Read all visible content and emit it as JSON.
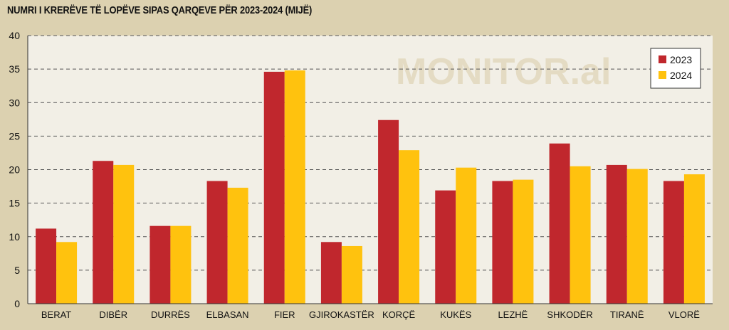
{
  "title": "NUMRI I KRERËVE TË LOPËVE SIPAS QARQEVE PËR 2023-2024 (MIJË)",
  "watermark": "MONITOR.al",
  "colors": {
    "page_background": "#dcd1b0",
    "plot_background": "#f2efe6",
    "series_2023": "#c0272d",
    "series_2024": "#ffc20e"
  },
  "chart_data": {
    "type": "bar",
    "title": "NUMRI I KRERËVE TË LOPËVE SIPAS QARQEVE PËR 2023-2024 (MIJË)",
    "xlabel": "",
    "ylabel": "",
    "ylim": [
      0,
      40
    ],
    "yticks": [
      "0",
      "5",
      "10",
      "15",
      "20",
      "25",
      "30",
      "35",
      "40"
    ],
    "grid": "horizontal-dashed",
    "legend_position": "top-right",
    "categories": [
      "BERAT",
      "DIBËR",
      "DURRËS",
      "ELBASAN",
      "FIER",
      "GJIROKASTËR",
      "KORÇË",
      "KUKËS",
      "LEZHË",
      "SHKODËR",
      "TIRANË",
      "VLORË"
    ],
    "series": [
      {
        "name": "2023",
        "color": "#c0272d",
        "values": [
          11.2,
          21.3,
          11.6,
          18.3,
          34.6,
          9.2,
          27.4,
          16.9,
          18.3,
          23.9,
          20.7,
          18.3
        ]
      },
      {
        "name": "2024",
        "color": "#ffc20e",
        "values": [
          9.2,
          20.7,
          11.6,
          17.3,
          34.8,
          8.6,
          22.9,
          20.3,
          18.5,
          20.5,
          20.1,
          19.3
        ]
      }
    ]
  }
}
